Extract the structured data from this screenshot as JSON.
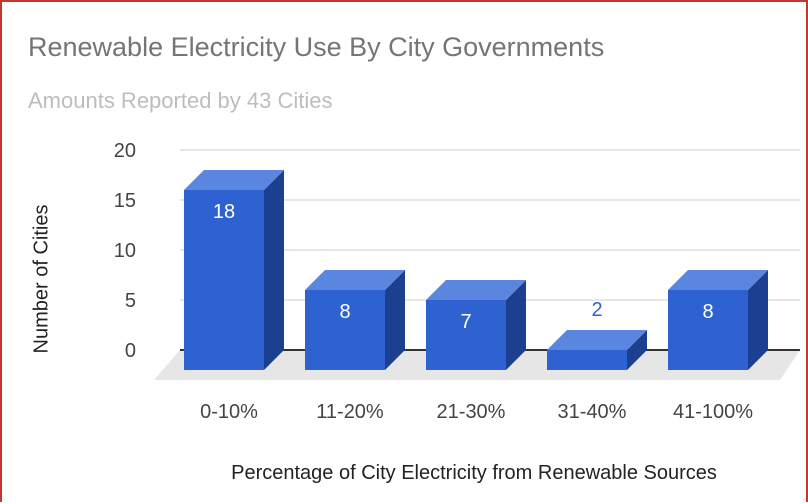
{
  "chart_data": {
    "type": "bar",
    "title": "Renewable Electricity Use By City Governments",
    "subtitle": "Amounts Reported by 43 Cities",
    "xlabel": "Percentage of City Electricity from Renewable Sources",
    "ylabel": "Number of Cities",
    "categories": [
      "0-10%",
      "11-20%",
      "21-30%",
      "31-40%",
      "41-100%"
    ],
    "values": [
      18,
      8,
      7,
      2,
      8
    ],
    "y_ticks": [
      0,
      5,
      10,
      15,
      20
    ],
    "ylim": [
      0,
      20
    ],
    "grid": true,
    "legend": "none",
    "colors": {
      "bar_front": "#2f62d1",
      "bar_top": "#5b86e0",
      "bar_side": "#1c3f8f",
      "floor": "#e6e6e6",
      "grid": "#cccccc",
      "axis": "#333333",
      "label_inside": "#ffffff",
      "label_outside": "#2f62d1",
      "tick_text": "#444444"
    }
  }
}
